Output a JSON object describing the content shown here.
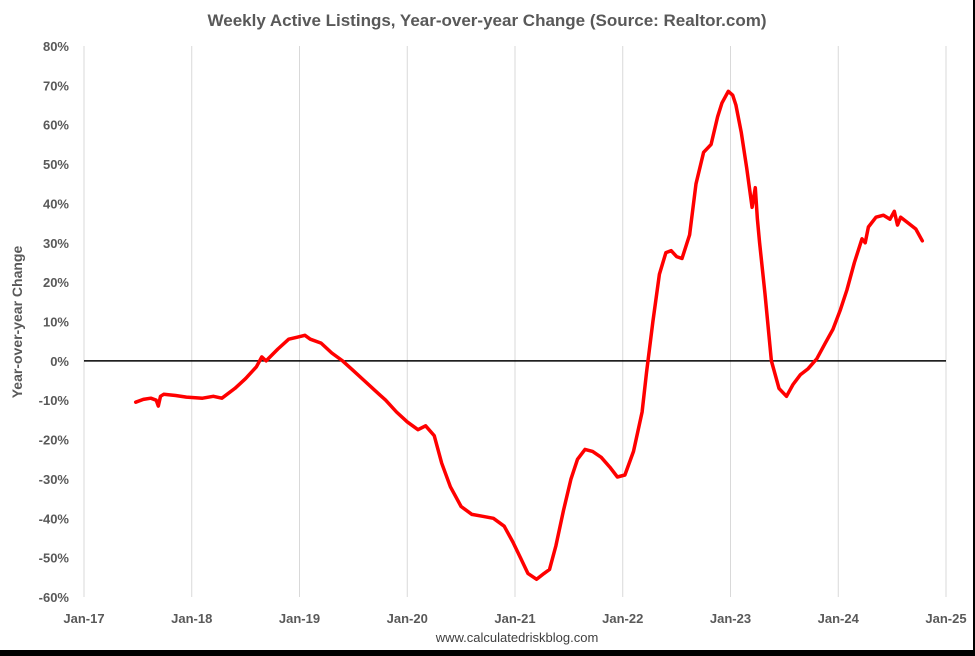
{
  "chart_data": {
    "type": "line",
    "title": "Weekly Active Listings, Year-over-year Change (Source: Realtor.com)",
    "xlabel": "",
    "ylabel": "Year-over-year Change",
    "source_note": "www.calculatedriskblog.com",
    "xlim": [
      2017.0,
      2025.0
    ],
    "ylim": [
      -60,
      80
    ],
    "x_ticks": [
      {
        "value": 2017.0,
        "label": "Jan-17"
      },
      {
        "value": 2018.0,
        "label": "Jan-18"
      },
      {
        "value": 2019.0,
        "label": "Jan-19"
      },
      {
        "value": 2020.0,
        "label": "Jan-20"
      },
      {
        "value": 2021.0,
        "label": "Jan-21"
      },
      {
        "value": 2022.0,
        "label": "Jan-22"
      },
      {
        "value": 2023.0,
        "label": "Jan-23"
      },
      {
        "value": 2024.0,
        "label": "Jan-24"
      },
      {
        "value": 2025.0,
        "label": "Jan-25"
      }
    ],
    "y_ticks": [
      {
        "value": 80,
        "label": "80%"
      },
      {
        "value": 70,
        "label": "70%"
      },
      {
        "value": 60,
        "label": "60%"
      },
      {
        "value": 50,
        "label": "50%"
      },
      {
        "value": 40,
        "label": "40%"
      },
      {
        "value": 30,
        "label": "30%"
      },
      {
        "value": 20,
        "label": "20%"
      },
      {
        "value": 10,
        "label": "10%"
      },
      {
        "value": 0,
        "label": "0%"
      },
      {
        "value": -10,
        "label": "-10%"
      },
      {
        "value": -20,
        "label": "-20%"
      },
      {
        "value": -30,
        "label": "-30%"
      },
      {
        "value": -40,
        "label": "-40%"
      },
      {
        "value": -50,
        "label": "-50%"
      },
      {
        "value": -60,
        "label": "-60%"
      }
    ],
    "grid": "vertical",
    "legend": "none",
    "series": [
      {
        "color": "#ff0000",
        "x": [
          2017.48,
          2017.55,
          2017.62,
          2017.67,
          2017.69,
          2017.71,
          2017.74,
          2017.85,
          2017.95,
          2018.1,
          2018.2,
          2018.28,
          2018.4,
          2018.5,
          2018.6,
          2018.65,
          2018.69,
          2018.8,
          2018.9,
          2018.98,
          2019.05,
          2019.1,
          2019.2,
          2019.3,
          2019.4,
          2019.5,
          2019.6,
          2019.7,
          2019.8,
          2019.9,
          2020.0,
          2020.1,
          2020.17,
          2020.25,
          2020.32,
          2020.4,
          2020.5,
          2020.6,
          2020.7,
          2020.8,
          2020.9,
          2020.98,
          2021.05,
          2021.12,
          2021.2,
          2021.27,
          2021.32,
          2021.38,
          2021.45,
          2021.52,
          2021.58,
          2021.65,
          2021.72,
          2021.8,
          2021.88,
          2021.95,
          2022.02,
          2022.1,
          2022.18,
          2022.22,
          2022.28,
          2022.34,
          2022.4,
          2022.45,
          2022.5,
          2022.55,
          2022.62,
          2022.68,
          2022.75,
          2022.82,
          2022.88,
          2022.92,
          2022.95,
          2022.98,
          2023.02,
          2023.05,
          2023.1,
          2023.15,
          2023.2,
          2023.23,
          2023.25,
          2023.27,
          2023.32,
          2023.38,
          2023.45,
          2023.52,
          2023.58,
          2023.65,
          2023.72,
          2023.8,
          2023.88,
          2023.95,
          2024.02,
          2024.08,
          2024.15,
          2024.22,
          2024.25,
          2024.28,
          2024.35,
          2024.42,
          2024.48,
          2024.52,
          2024.55,
          2024.58,
          2024.65,
          2024.72,
          2024.78
        ],
        "y": [
          -10.5,
          -9.8,
          -9.5,
          -10.0,
          -11.5,
          -9.0,
          -8.5,
          -8.8,
          -9.2,
          -9.5,
          -9.0,
          -9.5,
          -7.0,
          -4.5,
          -1.5,
          1.0,
          0.0,
          3.0,
          5.5,
          6.0,
          6.5,
          5.5,
          4.5,
          2.0,
          0.0,
          -2.5,
          -5.0,
          -7.5,
          -10.0,
          -13.0,
          -15.5,
          -17.5,
          -16.5,
          -19.0,
          -26.0,
          -32.0,
          -37.0,
          -39.0,
          -39.5,
          -40.0,
          -42.0,
          -46.0,
          -50.0,
          -54.0,
          -55.5,
          -54.0,
          -53.0,
          -47.0,
          -38.0,
          -30.0,
          -25.0,
          -22.5,
          -23.0,
          -24.5,
          -27.0,
          -29.5,
          -29.0,
          -23.0,
          -13.0,
          -3.0,
          10.0,
          22.0,
          27.5,
          28.0,
          26.5,
          26.0,
          32.0,
          45.0,
          53.0,
          55.0,
          62.0,
          65.5,
          67.0,
          68.5,
          67.5,
          65.0,
          58.0,
          49.0,
          39.0,
          44.0,
          36.0,
          30.0,
          17.0,
          0.0,
          -7.0,
          -9.0,
          -6.0,
          -3.5,
          -2.0,
          0.5,
          4.5,
          8.0,
          13.0,
          18.0,
          25.0,
          31.0,
          30.0,
          34.0,
          36.5,
          37.0,
          36.0,
          38.0,
          34.5,
          36.5,
          35.0,
          33.5,
          30.5
        ]
      }
    ]
  }
}
